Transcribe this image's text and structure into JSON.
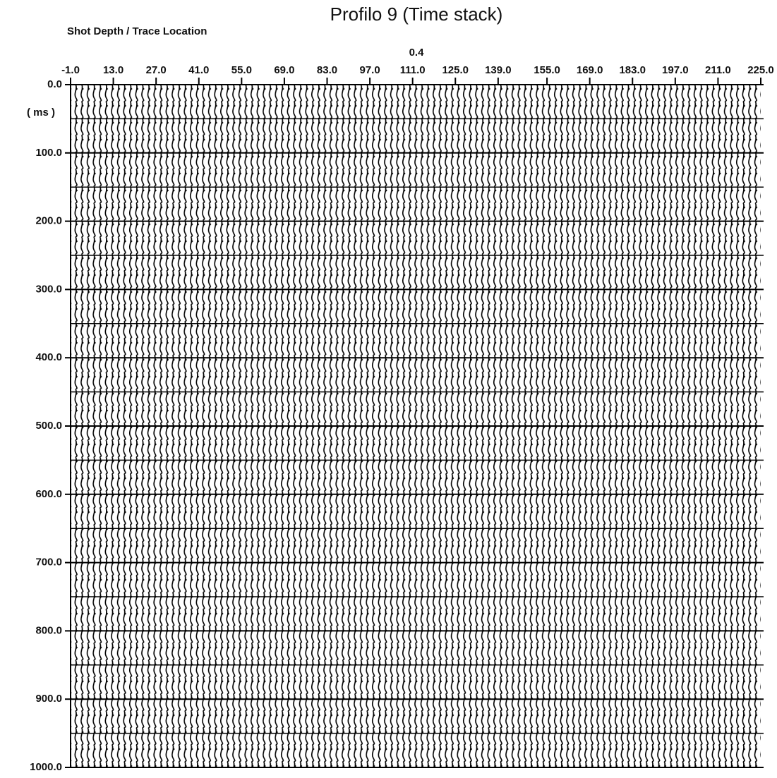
{
  "chart_data": {
    "type": "seismic",
    "title": "Profilo 9 (Time stack)",
    "x_label": "Shot Depth / Trace Location",
    "annotation": "0.4",
    "y_label": "( ms )",
    "xlim": [
      -1,
      225
    ],
    "ylim": [
      0,
      1000
    ],
    "y_reversed": true,
    "grid": true,
    "color": "#000000",
    "xticks": [
      {
        "value": -1,
        "label": "-1.0"
      },
      {
        "value": 13,
        "label": "13.0"
      },
      {
        "value": 27,
        "label": "27.0"
      },
      {
        "value": 41,
        "label": "41.0"
      },
      {
        "value": 55,
        "label": "55.0"
      },
      {
        "value": 69,
        "label": "69.0"
      },
      {
        "value": 83,
        "label": "83.0"
      },
      {
        "value": 97,
        "label": "97.0"
      },
      {
        "value": 111,
        "label": "111.0"
      },
      {
        "value": 125,
        "label": "125.0"
      },
      {
        "value": 139,
        "label": "139.0"
      },
      {
        "value": 155,
        "label": "155.0"
      },
      {
        "value": 169,
        "label": "169.0"
      },
      {
        "value": 183,
        "label": "183.0"
      },
      {
        "value": 197,
        "label": "197.0"
      },
      {
        "value": 211,
        "label": "211.0"
      },
      {
        "value": 225,
        "label": "225.0"
      }
    ],
    "yticks": [
      {
        "value": 0,
        "label": "0.0"
      },
      {
        "value": 100,
        "label": "100.0"
      },
      {
        "value": 200,
        "label": "200.0"
      },
      {
        "value": 300,
        "label": "300.0"
      },
      {
        "value": 400,
        "label": "400.0"
      },
      {
        "value": 500,
        "label": "500.0"
      },
      {
        "value": 600,
        "label": "600.0"
      },
      {
        "value": 700,
        "label": "700.0"
      },
      {
        "value": 800,
        "label": "800.0"
      },
      {
        "value": 900,
        "label": "900.0"
      },
      {
        "value": 1000,
        "label": "1000.0"
      }
    ]
  }
}
